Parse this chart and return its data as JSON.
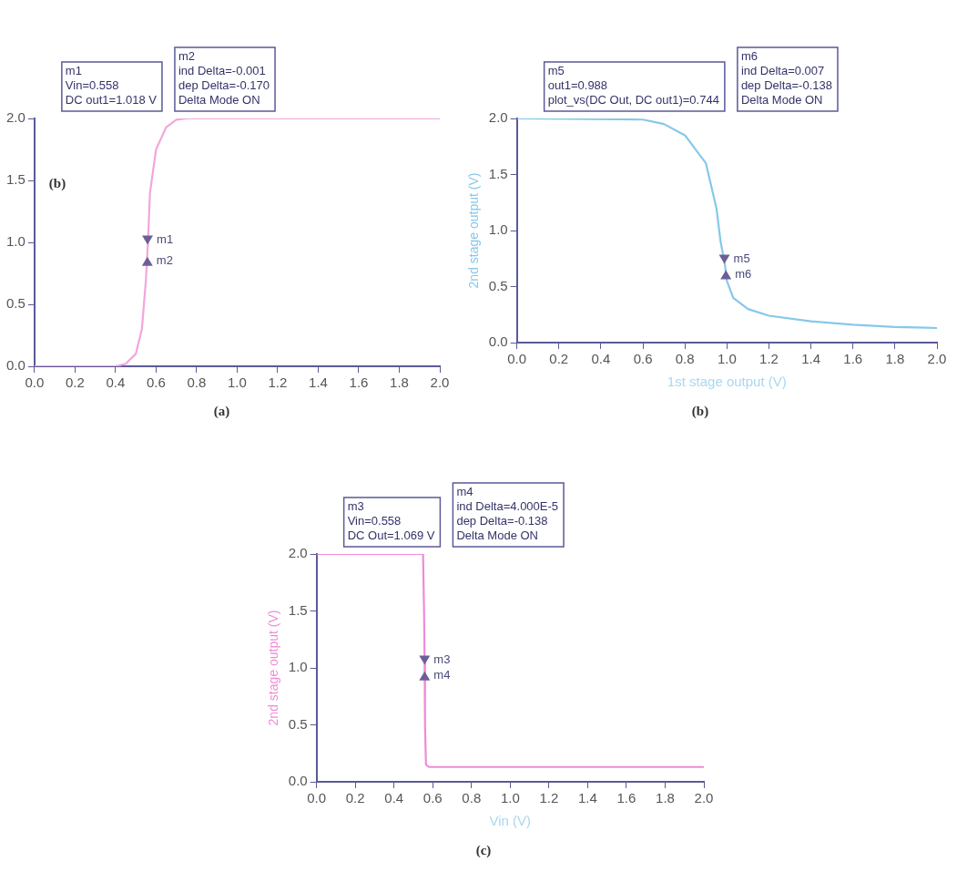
{
  "chart_data": [
    {
      "type": "line",
      "title": "(a)",
      "x": [
        0,
        0.4,
        0.45,
        0.5,
        0.53,
        0.55,
        0.56,
        0.57,
        0.6,
        0.65,
        0.7,
        0.75,
        2.0
      ],
      "series": [
        {
          "color": "#f2a6dc",
          "values": [
            0,
            0,
            0.02,
            0.1,
            0.3,
            0.7,
            1.0,
            1.4,
            1.75,
            1.93,
            1.99,
            2.0,
            2.0
          ]
        }
      ],
      "xlim": [
        0,
        2
      ],
      "xticks": [
        {
          "value": 0,
          "label": "0.0"
        },
        {
          "value": 0.2,
          "label": "0.2"
        },
        {
          "value": 0.4,
          "label": "0.4"
        },
        {
          "value": 0.6,
          "label": "0.6"
        },
        {
          "value": 0.8,
          "label": "0.8"
        },
        {
          "value": 1,
          "label": "1.0"
        },
        {
          "value": 1.2,
          "label": "1.2"
        },
        {
          "value": 1.4,
          "label": "1.4"
        },
        {
          "value": 1.6,
          "label": "1.6"
        },
        {
          "value": 1.8,
          "label": "1.8"
        },
        {
          "value": 2,
          "label": "2.0"
        }
      ],
      "ylim": [
        0,
        2
      ],
      "yticks": [
        {
          "value": 0,
          "label": "0.0"
        },
        {
          "value": 0.5,
          "label": "0.5"
        },
        {
          "value": 1,
          "label": "1.0"
        },
        {
          "value": 1.5,
          "label": "1.5"
        },
        {
          "value": 2,
          "label": "2.0"
        }
      ],
      "grid": false,
      "legend": false,
      "marker": "none",
      "line_style": "solid",
      "annotations": [
        "m1\nVin=0.558\nDC out1=1.018 V",
        "m2\nind Delta=-0.001\ndep Delta=-0.170\nDelta Mode ON",
        "(b)",
        {
          "text": "m1",
          "x": 0.558,
          "y": 1.018
        },
        {
          "text": "m2",
          "x": 0.557,
          "y": 0.848
        }
      ]
    },
    {
      "type": "line",
      "title": "(b)",
      "xlabel": "1st stage output (V)",
      "ylabel": "2nd stage output (V)",
      "x": [
        0,
        0.6,
        0.7,
        0.8,
        0.9,
        0.95,
        0.97,
        0.99,
        1.0,
        1.03,
        1.1,
        1.2,
        1.4,
        1.6,
        1.8,
        2.0
      ],
      "series": [
        {
          "color": "#86c8e8",
          "values": [
            2.0,
            1.99,
            1.95,
            1.85,
            1.6,
            1.2,
            0.9,
            0.7,
            0.55,
            0.4,
            0.3,
            0.24,
            0.19,
            0.16,
            0.14,
            0.13
          ]
        }
      ],
      "xlim": [
        0,
        2
      ],
      "xticks": [
        {
          "value": 0,
          "label": "0.0"
        },
        {
          "value": 0.2,
          "label": "0.2"
        },
        {
          "value": 0.4,
          "label": "0.4"
        },
        {
          "value": 0.6,
          "label": "0.6"
        },
        {
          "value": 0.8,
          "label": "0.8"
        },
        {
          "value": 1,
          "label": "1.0"
        },
        {
          "value": 1.2,
          "label": "1.2"
        },
        {
          "value": 1.4,
          "label": "1.4"
        },
        {
          "value": 1.6,
          "label": "1.6"
        },
        {
          "value": 1.8,
          "label": "1.8"
        },
        {
          "value": 2,
          "label": "2.0"
        }
      ],
      "ylim": [
        0,
        2
      ],
      "yticks": [
        {
          "value": 0,
          "label": "0.0"
        },
        {
          "value": 0.5,
          "label": "0.5"
        },
        {
          "value": 1,
          "label": "1.0"
        },
        {
          "value": 1.5,
          "label": "1.5"
        },
        {
          "value": 2,
          "label": "2.0"
        }
      ],
      "grid": false,
      "legend": false,
      "marker": "none",
      "line_style": "solid",
      "annotations": [
        "m5\nout1=0.988\nplot_vs(DC Out, DC out1)=0.744",
        "m6\nind Delta=0.007\ndep Delta=-0.138\nDelta Mode ON",
        {
          "text": "m5",
          "x": 0.988,
          "y": 0.744
        },
        {
          "text": "m6",
          "x": 0.995,
          "y": 0.606
        }
      ]
    },
    {
      "type": "line",
      "title": "(c)",
      "xlabel": "Vin (V)",
      "ylabel": "2nd stage output (V)",
      "x": [
        0,
        0.55,
        0.555,
        0.558,
        0.56,
        0.565,
        0.58,
        2.0
      ],
      "series": [
        {
          "color": "#f08ad8",
          "values": [
            2.0,
            2.0,
            1.5,
            1.069,
            0.5,
            0.15,
            0.13,
            0.13
          ]
        }
      ],
      "xlim": [
        0,
        2
      ],
      "xticks": [
        {
          "value": 0,
          "label": "0.0"
        },
        {
          "value": 0.2,
          "label": "0.2"
        },
        {
          "value": 0.4,
          "label": "0.4"
        },
        {
          "value": 0.6,
          "label": "0.6"
        },
        {
          "value": 0.8,
          "label": "0.8"
        },
        {
          "value": 1,
          "label": "1.0"
        },
        {
          "value": 1.2,
          "label": "1.2"
        },
        {
          "value": 1.4,
          "label": "1.4"
        },
        {
          "value": 1.6,
          "label": "1.6"
        },
        {
          "value": 1.8,
          "label": "1.8"
        },
        {
          "value": 2,
          "label": "2.0"
        }
      ],
      "ylim": [
        0,
        2
      ],
      "yticks": [
        {
          "value": 0,
          "label": "0.0"
        },
        {
          "value": 0.5,
          "label": "0.5"
        },
        {
          "value": 1,
          "label": "1.0"
        },
        {
          "value": 1.5,
          "label": "1.5"
        },
        {
          "value": 2,
          "label": "2.0"
        }
      ],
      "grid": false,
      "legend": false,
      "marker": "none",
      "line_style": "solid",
      "annotations": [
        "m3\nVin=0.558\nDC Out=1.069 V",
        "m4\nind Delta=4.000E-5\ndep Delta=-0.138\nDelta Mode ON",
        {
          "text": "m3",
          "x": 0.558,
          "y": 1.069
        },
        {
          "text": "m4",
          "x": 0.558,
          "y": 0.931
        }
      ]
    }
  ]
}
